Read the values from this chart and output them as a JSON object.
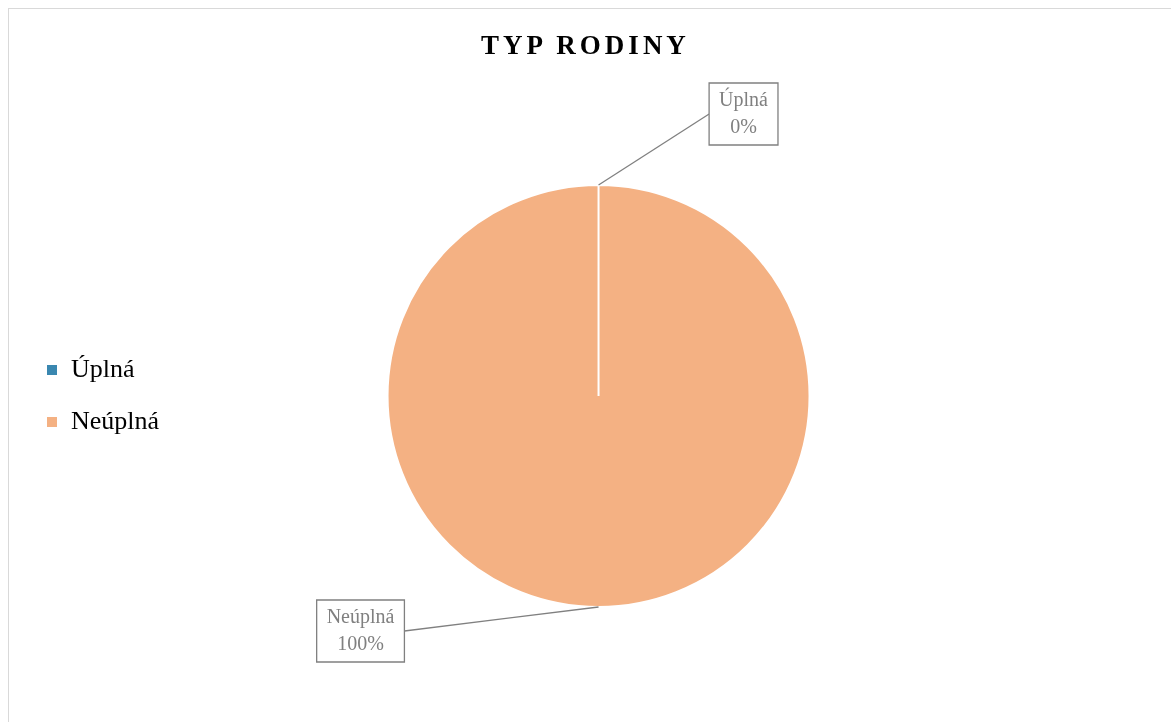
{
  "chart_data": {
    "type": "pie",
    "title": "TYP RODINY",
    "categories": [
      "Úplná",
      "Neúplná"
    ],
    "values": [
      0,
      100
    ],
    "colors": [
      "#3a87b0",
      "#f4b183"
    ],
    "value_labels": [
      "0%",
      "100%"
    ],
    "legend": "left"
  }
}
